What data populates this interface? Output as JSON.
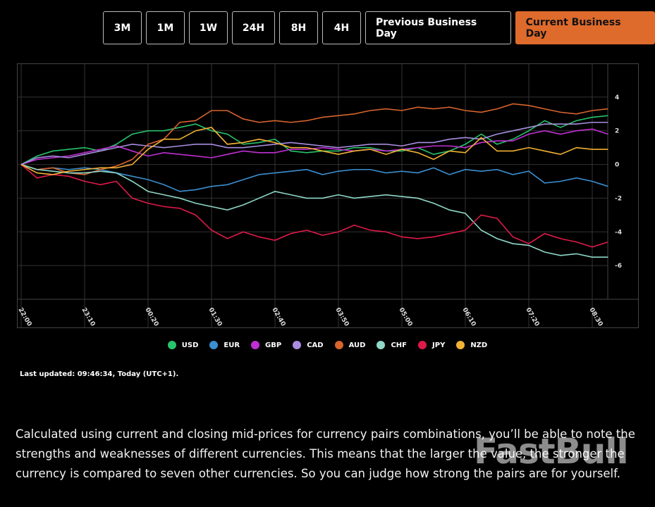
{
  "buttons": [
    {
      "label": "3M",
      "active": false
    },
    {
      "label": "1M",
      "active": false
    },
    {
      "label": "1W",
      "active": false
    },
    {
      "label": "24H",
      "active": false
    },
    {
      "label": "8H",
      "active": false
    },
    {
      "label": "4H",
      "active": false
    },
    {
      "label": "Previous Business Day",
      "active": false
    },
    {
      "label": "Current Business Day",
      "active": true
    }
  ],
  "chart_data": {
    "type": "line",
    "categories": [
      "22:00",
      null,
      null,
      null,
      "23:10",
      null,
      null,
      null,
      "00:20",
      null,
      null,
      null,
      "01:30",
      null,
      null,
      null,
      "02:40",
      null,
      null,
      null,
      "03:50",
      null,
      null,
      null,
      "05:00",
      null,
      null,
      null,
      "06:10",
      null,
      null,
      null,
      "07:20",
      null,
      null,
      null,
      "08:30",
      null
    ],
    "ylim": [
      -8,
      6
    ],
    "yticks": [
      -6,
      -4,
      -2,
      0,
      2,
      4
    ],
    "grid": true,
    "legend": "bottom",
    "series": [
      {
        "name": "USD",
        "color": "#27c46a",
        "values": [
          0,
          0.5,
          0.8,
          0.9,
          1.0,
          0.8,
          1.2,
          1.8,
          2.0,
          2.0,
          2.2,
          2.4,
          2.0,
          1.8,
          1.2,
          1.3,
          1.5,
          0.8,
          0.7,
          0.8,
          0.8,
          1.0,
          1.0,
          0.8,
          0.8,
          1.0,
          0.6,
          0.8,
          1.2,
          1.8,
          1.2,
          1.5,
          2.0,
          2.6,
          2.2,
          2.6,
          2.8,
          2.9
        ]
      },
      {
        "name": "EUR",
        "color": "#3b8fd0",
        "values": [
          0,
          -0.3,
          -0.2,
          -0.3,
          -0.2,
          -0.3,
          -0.5,
          -0.7,
          -0.9,
          -1.2,
          -1.6,
          -1.5,
          -1.3,
          -1.2,
          -0.9,
          -0.6,
          -0.5,
          -0.4,
          -0.3,
          -0.6,
          -0.4,
          -0.3,
          -0.3,
          -0.5,
          -0.4,
          -0.5,
          -0.2,
          -0.6,
          -0.3,
          -0.4,
          -0.3,
          -0.6,
          -0.4,
          -1.1,
          -1.0,
          -0.8,
          -1.0,
          -1.3
        ]
      },
      {
        "name": "GBP",
        "color": "#c02fd3",
        "values": [
          0,
          0.3,
          0.4,
          0.5,
          0.7,
          0.9,
          1.1,
          0.8,
          0.5,
          0.7,
          0.6,
          0.5,
          0.4,
          0.6,
          0.8,
          0.7,
          0.7,
          0.9,
          0.9,
          1.0,
          0.9,
          0.8,
          0.9,
          0.8,
          0.9,
          1.0,
          1.1,
          1.1,
          1.0,
          1.3,
          1.4,
          1.4,
          1.8,
          2.0,
          1.8,
          2.0,
          2.1,
          1.8
        ]
      },
      {
        "name": "CAD",
        "color": "#a98de0",
        "values": [
          0,
          0.4,
          0.5,
          0.4,
          0.6,
          0.8,
          1.0,
          1.2,
          1.1,
          1.0,
          1.1,
          1.2,
          1.2,
          1.0,
          1.0,
          1.1,
          1.2,
          1.3,
          1.2,
          1.1,
          1.0,
          1.1,
          1.2,
          1.2,
          1.1,
          1.3,
          1.3,
          1.5,
          1.6,
          1.5,
          1.8,
          2.0,
          2.2,
          2.4,
          2.4,
          2.4,
          2.5,
          2.5
        ]
      },
      {
        "name": "AUD",
        "color": "#d8642e",
        "values": [
          0,
          -0.3,
          -0.2,
          -0.5,
          -0.6,
          -0.3,
          -0.1,
          0.3,
          1.2,
          1.5,
          2.5,
          2.6,
          3.2,
          3.2,
          2.7,
          2.5,
          2.6,
          2.5,
          2.6,
          2.8,
          2.9,
          3.0,
          3.2,
          3.3,
          3.2,
          3.4,
          3.3,
          3.4,
          3.2,
          3.1,
          3.3,
          3.6,
          3.5,
          3.3,
          3.1,
          3.0,
          3.2,
          3.3
        ]
      },
      {
        "name": "CHF",
        "color": "#8fd8c8",
        "values": [
          0,
          -0.3,
          -0.4,
          -0.5,
          -0.5,
          -0.4,
          -0.5,
          -1.0,
          -1.6,
          -1.8,
          -2.0,
          -2.3,
          -2.5,
          -2.7,
          -2.4,
          -2.0,
          -1.6,
          -1.8,
          -2.0,
          -2.0,
          -1.8,
          -2.0,
          -1.9,
          -1.8,
          -1.9,
          -2.0,
          -2.3,
          -2.7,
          -2.9,
          -3.9,
          -4.4,
          -4.7,
          -4.8,
          -5.2,
          -5.4,
          -5.3,
          -5.5,
          -5.5
        ]
      },
      {
        "name": "JPY",
        "color": "#e0194a",
        "values": [
          0,
          -0.8,
          -0.6,
          -0.7,
          -1.0,
          -1.2,
          -1.0,
          -2.0,
          -2.3,
          -2.5,
          -2.6,
          -3.0,
          -3.9,
          -4.4,
          -4.0,
          -4.3,
          -4.5,
          -4.1,
          -3.9,
          -4.2,
          -4.0,
          -3.6,
          -3.9,
          -4.0,
          -4.3,
          -4.4,
          -4.3,
          -4.1,
          -3.9,
          -3.0,
          -3.2,
          -4.3,
          -4.7,
          -4.1,
          -4.4,
          -4.6,
          -4.9,
          -4.6
        ]
      },
      {
        "name": "NZD",
        "color": "#f2b233",
        "values": [
          0,
          -0.5,
          -0.6,
          -0.4,
          -0.3,
          -0.2,
          -0.2,
          0.0,
          0.9,
          1.5,
          1.5,
          2.0,
          2.2,
          1.2,
          1.3,
          1.5,
          1.3,
          1.0,
          1.0,
          0.8,
          0.6,
          0.8,
          0.9,
          0.6,
          0.9,
          0.7,
          0.3,
          0.8,
          0.7,
          1.6,
          0.8,
          0.8,
          1.0,
          0.8,
          0.6,
          1.0,
          0.9,
          0.9
        ]
      }
    ]
  },
  "last_updated": "Last updated: 09:46:34, Today (UTC+1).",
  "description": "Calculated using current and closing mid-prices for currency pairs combinations, you’ll be able to note the strengths and weaknesses of different currencies. This means that the larger the value, the stronger the currency is compared to seven other currencies. So you can judge how strong the pairs are for yourself.",
  "watermark": "FastBull"
}
